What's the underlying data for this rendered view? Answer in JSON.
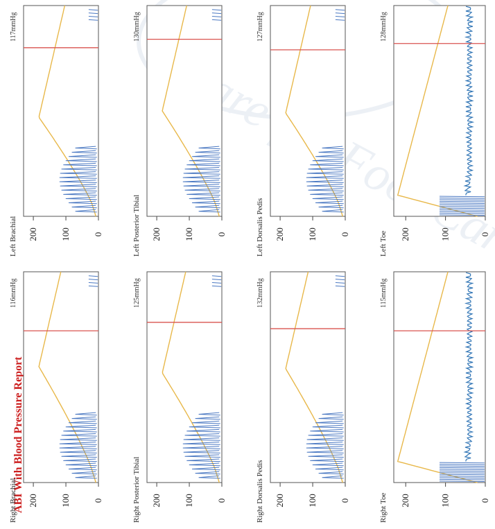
{
  "report": {
    "title": "ABI With Blood Pressure Report",
    "title_visible_fragment": "ABI With Blood Pressure Report"
  },
  "watermark": {
    "text": "Care for Foot Care",
    "color": "#9bb0cc"
  },
  "colors": {
    "cuff_pressure": "#e8b84a",
    "pulse_waveform": "#4a78c2",
    "systolic_marker": "#d9534f",
    "toe_baseline": "#2f74b5"
  },
  "chart_data": [
    {
      "type": "line",
      "name": "Right Brachial",
      "pressure": "116mmHg",
      "yticks": [
        "0",
        "100",
        "200"
      ],
      "ylim": [
        0,
        230
      ]
    },
    {
      "type": "line",
      "name": "Right Posterior Tibial",
      "pressure": "125mmHg",
      "yticks": [
        "0",
        "100",
        "200"
      ],
      "ylim": [
        0,
        230
      ]
    },
    {
      "type": "line",
      "name": "Right Dorsalis Pedis",
      "pressure": "132mmHg",
      "yticks": [
        "0",
        "100",
        "200"
      ],
      "ylim": [
        0,
        230
      ]
    },
    {
      "type": "line",
      "name": "Right Toe",
      "pressure": "115mmHg",
      "yticks": [
        "0",
        "100",
        "200"
      ],
      "ylim": [
        0,
        230
      ]
    },
    {
      "type": "line",
      "name": "Left Brachial",
      "pressure": "117mmHg",
      "yticks": [
        "0",
        "100",
        "200"
      ],
      "ylim": [
        0,
        230
      ]
    },
    {
      "type": "line",
      "name": "Left Posterior Tibial",
      "pressure": "130mmHg",
      "yticks": [
        "0",
        "100",
        "200"
      ],
      "ylim": [
        0,
        230
      ]
    },
    {
      "type": "line",
      "name": "Left Dorsalis Pedis",
      "pressure": "127mmHg",
      "yticks": [
        "0",
        "100",
        "200"
      ],
      "ylim": [
        0,
        230
      ]
    },
    {
      "type": "line",
      "name": "Left Toe",
      "pressure": "128mmHg",
      "yticks": [
        "0",
        "100",
        "200"
      ],
      "ylim": [
        0,
        230
      ]
    }
  ]
}
